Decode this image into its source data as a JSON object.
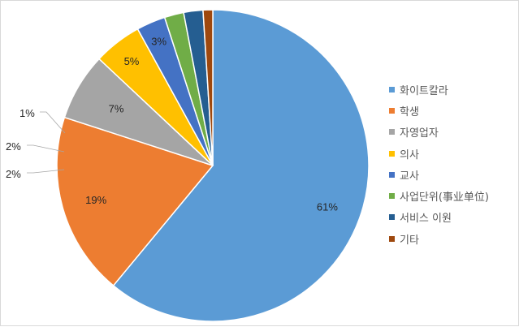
{
  "chart_data": {
    "type": "pie",
    "slices": [
      {
        "label": "화이트칼라",
        "value": 61,
        "display": "61%",
        "color": "#5b9bd5"
      },
      {
        "label": "학생",
        "value": 19,
        "display": "19%",
        "color": "#ed7d31"
      },
      {
        "label": "자영업자",
        "value": 7,
        "display": "7%",
        "color": "#a5a5a5"
      },
      {
        "label": "의사",
        "value": 5,
        "display": "5%",
        "color": "#ffc000"
      },
      {
        "label": "교사",
        "value": 3,
        "display": "3%",
        "color": "#4472c4"
      },
      {
        "label": "사업단위(事业单位)",
        "value": 2,
        "display": "2%",
        "color": "#70ad47"
      },
      {
        "label": "서비스 이원",
        "value": 2,
        "display": "2%",
        "color": "#255e91"
      },
      {
        "label": "기타",
        "value": 1,
        "display": "1%",
        "color": "#9e480e"
      }
    ],
    "legend_position": "right"
  }
}
